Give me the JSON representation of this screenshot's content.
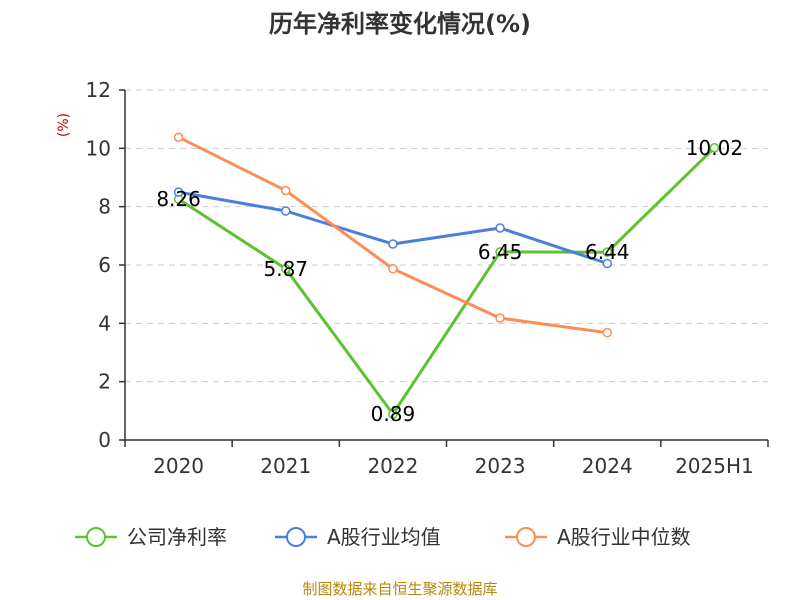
{
  "chart_data": {
    "type": "line",
    "title": "历年净利率变化情况(%)",
    "ylabel": "(%)",
    "categories": [
      "2020",
      "2021",
      "2022",
      "2023",
      "2024",
      "2025H1"
    ],
    "ylim": [
      0,
      12
    ],
    "yticks": [
      0,
      2,
      4,
      6,
      8,
      10,
      12
    ],
    "grid": true,
    "legend_position": "bottom",
    "series": [
      {
        "name": "公司净利率",
        "color": "#5cc230",
        "values": [
          8.26,
          5.87,
          0.89,
          6.45,
          6.44,
          10.02
        ],
        "labels": [
          "8.26",
          "5.87",
          "0.89",
          "6.45",
          "6.44",
          "10.02"
        ]
      },
      {
        "name": "A股行业均值",
        "color": "#4a7fdc",
        "values": [
          8.5,
          7.85,
          6.72,
          7.27,
          6.05,
          null
        ]
      },
      {
        "name": "A股行业中位数",
        "color": "#ff8c55",
        "values": [
          10.38,
          8.55,
          5.87,
          4.18,
          3.68,
          null
        ]
      }
    ]
  },
  "source": "制图数据来自恒生聚源数据库"
}
